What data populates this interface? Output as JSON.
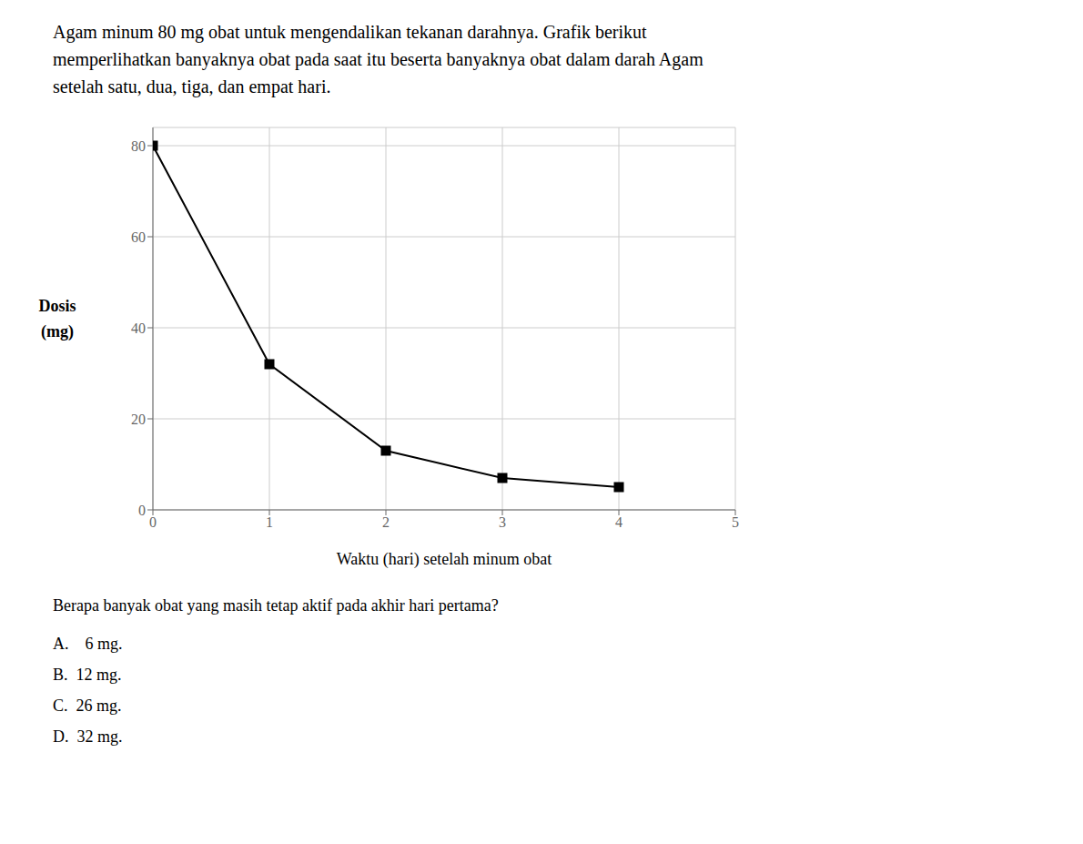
{
  "chart_data": {
    "type": "line",
    "title": [
      "Agam minum 80 mg obat untuk mengendalikan tekanan darahnya. Grafik berikut",
      "memperlihatkan banyaknya obat pada saat itu beserta banyaknya obat dalam darah Agam",
      "setelah satu, dua, tiga, dan empat hari."
    ],
    "x": [
      0,
      1,
      2,
      3,
      4
    ],
    "values": [
      80,
      32,
      13,
      7,
      5
    ],
    "xlim": [
      0,
      5
    ],
    "ylim": [
      0,
      84
    ],
    "xticks": [
      0,
      1,
      2,
      3,
      4,
      5
    ],
    "yticks": [
      0,
      20,
      40,
      60,
      80
    ],
    "xlabel": "Waktu (hari) setelah minum obat",
    "ylabel": [
      "Dosis",
      "(mg)"
    ],
    "color": "#000000",
    "marker": "square",
    "grid": true,
    "annotations": [
      "Berapa banyak obat yang masih tetap aktif pada akhir hari pertama?",
      "A.    6 mg.",
      "B.  12 mg.",
      "C.  26 mg.",
      "D.  32 mg."
    ]
  }
}
